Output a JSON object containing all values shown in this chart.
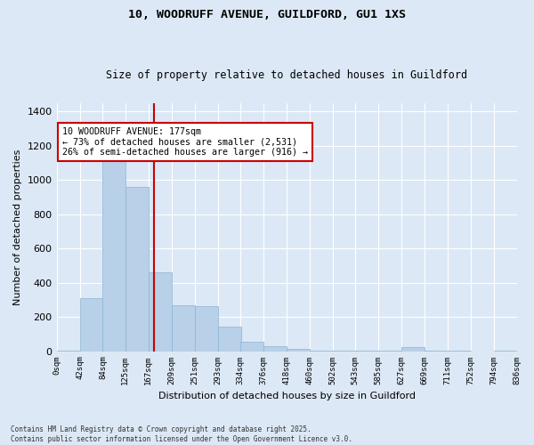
{
  "title": "10, WOODRUFF AVENUE, GUILDFORD, GU1 1XS",
  "subtitle": "Size of property relative to detached houses in Guildford",
  "xlabel": "Distribution of detached houses by size in Guildford",
  "ylabel": "Number of detached properties",
  "bar_color": "#b8d0e8",
  "bar_edge_color": "#8ab4d4",
  "background_color": "#dce8f5",
  "grid_color": "#ffffff",
  "fig_bg_color": "#dce8f5",
  "red_line_x": 177,
  "annotation_text": "10 WOODRUFF AVENUE: 177sqm\n← 73% of detached houses are smaller (2,531)\n26% of semi-detached houses are larger (916) →",
  "annotation_box_color": "#ffffff",
  "annotation_border_color": "#cc0000",
  "bins_left": [
    0,
    42,
    84,
    125,
    167,
    209,
    251,
    293,
    334,
    376,
    418,
    460,
    502,
    543,
    585,
    627,
    669,
    711,
    752,
    794
  ],
  "bin_width": 42,
  "bar_heights": [
    5,
    310,
    1130,
    960,
    460,
    270,
    265,
    145,
    55,
    30,
    15,
    5,
    5,
    5,
    5,
    25,
    5,
    5,
    0,
    5
  ],
  "ylim": [
    0,
    1450
  ],
  "yticks": [
    0,
    200,
    400,
    600,
    800,
    1000,
    1200,
    1400
  ],
  "xlim": [
    0,
    836
  ],
  "tick_labels": [
    "0sqm",
    "42sqm",
    "84sqm",
    "125sqm",
    "167sqm",
    "209sqm",
    "251sqm",
    "293sqm",
    "334sqm",
    "376sqm",
    "418sqm",
    "460sqm",
    "502sqm",
    "543sqm",
    "585sqm",
    "627sqm",
    "669sqm",
    "711sqm",
    "752sqm",
    "794sqm",
    "836sqm"
  ],
  "footnote": "Contains HM Land Registry data © Crown copyright and database right 2025.\nContains public sector information licensed under the Open Government Licence v3.0."
}
